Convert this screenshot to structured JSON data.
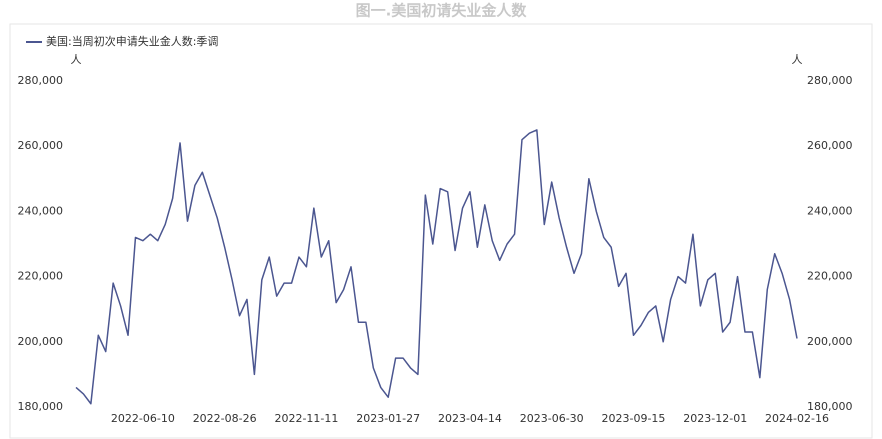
{
  "chart_data": {
    "type": "line",
    "title": "图一.美国初请失业金人数",
    "y_unit": "人",
    "y2_unit": "人",
    "categories": [
      null,
      null,
      null,
      null,
      null,
      null,
      null,
      null,
      null,
      "2022-06-10",
      null,
      null,
      null,
      null,
      null,
      null,
      null,
      null,
      null,
      null,
      "2022-08-26",
      null,
      null,
      null,
      null,
      null,
      null,
      null,
      null,
      null,
      null,
      "2022-11-11",
      null,
      null,
      null,
      null,
      null,
      null,
      null,
      null,
      null,
      null,
      "2023-01-27",
      null,
      null,
      null,
      null,
      null,
      null,
      null,
      null,
      null,
      null,
      "2023-04-14",
      null,
      null,
      null,
      null,
      null,
      null,
      null,
      null,
      null,
      null,
      "2023-06-30",
      null,
      null,
      null,
      null,
      null,
      null,
      null,
      null,
      null,
      null,
      "2023-09-15",
      null,
      null,
      null,
      null,
      null,
      null,
      null,
      null,
      null,
      null,
      "2023-12-01",
      null,
      null,
      null,
      null,
      null,
      null,
      null,
      null,
      null,
      null,
      "2024-02-16"
    ],
    "series": [
      {
        "name": "美国:当周初次申请失业金人数:季调",
        "color": "#4b5690",
        "values": [
          186000,
          184000,
          181000,
          202000,
          197000,
          218000,
          211000,
          202000,
          232000,
          231000,
          233000,
          231000,
          236000,
          244000,
          261000,
          237000,
          248000,
          252000,
          245000,
          238000,
          229000,
          219000,
          208000,
          213000,
          190000,
          219000,
          226000,
          214000,
          218000,
          218000,
          226000,
          223000,
          241000,
          226000,
          231000,
          212000,
          216000,
          223000,
          206000,
          206000,
          192000,
          186000,
          183000,
          195000,
          195000,
          192000,
          190000,
          245000,
          230000,
          247000,
          246000,
          228000,
          241000,
          246000,
          229000,
          242000,
          231000,
          225000,
          230000,
          233000,
          262000,
          264000,
          265000,
          236000,
          249000,
          238000,
          229000,
          221000,
          227000,
          250000,
          240000,
          232000,
          229000,
          217000,
          221000,
          202000,
          205000,
          209000,
          211000,
          200000,
          213000,
          220000,
          218000,
          233000,
          211000,
          219000,
          221000,
          203000,
          206000,
          220000,
          203000,
          203000,
          189000,
          216000,
          227000,
          221000,
          213000,
          201000
        ]
      }
    ],
    "ylim": [
      180000,
      280000
    ],
    "yticks": [
      {
        "value": 180000,
        "label": "180,000"
      },
      {
        "value": 200000,
        "label": "200,000"
      },
      {
        "value": 220000,
        "label": "220,000"
      },
      {
        "value": 240000,
        "label": "240,000"
      },
      {
        "value": 260000,
        "label": "260,000"
      },
      {
        "value": 280000,
        "label": "280,000"
      }
    ],
    "y2lim": [
      180000,
      280000
    ],
    "y2ticks": [
      {
        "value": 180000,
        "label": "180,000"
      },
      {
        "value": 200000,
        "label": "200,000"
      },
      {
        "value": 220000,
        "label": "220,000"
      },
      {
        "value": 240000,
        "label": "240,000"
      },
      {
        "value": 260000,
        "label": "260,000"
      },
      {
        "value": 280000,
        "label": "280,000"
      }
    ],
    "grid": false,
    "legend": "top-left"
  }
}
